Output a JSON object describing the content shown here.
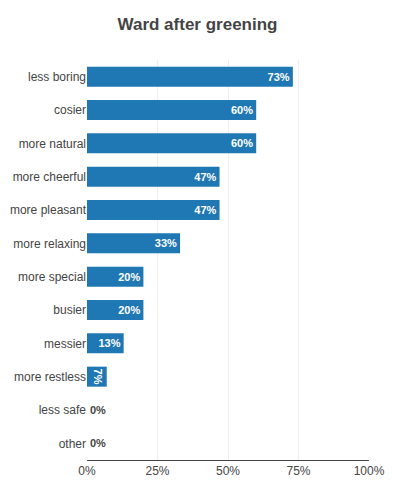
{
  "chart_data": {
    "type": "bar",
    "orientation": "horizontal",
    "title": "Ward after greening",
    "categories": [
      "less boring",
      "cosier",
      "more natural",
      "more cheerful",
      "more pleasant",
      "more relaxing",
      "more special",
      "busier",
      "messier",
      "more restless",
      "less safe",
      "other"
    ],
    "values": [
      73,
      60,
      60,
      47,
      47,
      33,
      20,
      20,
      13,
      7,
      0,
      0
    ],
    "value_labels": [
      "73%",
      "60%",
      "60%",
      "47%",
      "47%",
      "33%",
      "20%",
      "20%",
      "13%",
      "7%",
      "0%",
      "0%"
    ],
    "data_labels": true,
    "xlim": [
      0,
      100
    ],
    "xticks": [
      {
        "value": 0,
        "label": "0%"
      },
      {
        "value": 25,
        "label": "25%"
      },
      {
        "value": 50,
        "label": "50%"
      },
      {
        "value": 75,
        "label": "75%"
      },
      {
        "value": 100,
        "label": "100%"
      }
    ],
    "grid": true
  }
}
